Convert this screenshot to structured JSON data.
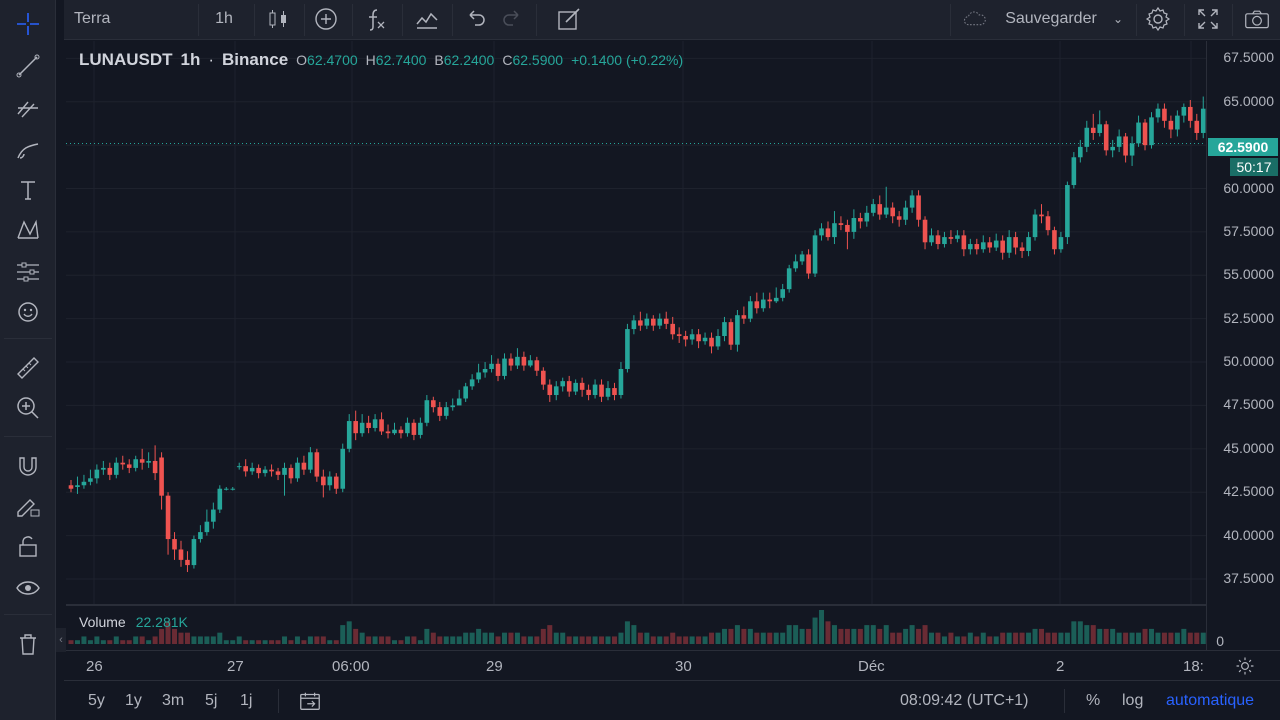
{
  "top_toolbar": {
    "symbol_search": "Terra",
    "interval": "1h",
    "save_label": "Sauvegarder",
    "icons": [
      "candles-icon",
      "indicators-add-icon",
      "fx-icon",
      "templates-icon",
      "undo-icon",
      "redo-icon",
      "edit-icon",
      "cloud-icon",
      "settings-icon",
      "fullscreen-icon",
      "camera-icon"
    ]
  },
  "legend": {
    "symbol": "LUNAUSDT",
    "interval": "1h",
    "exchange": "Binance",
    "open_label": "O",
    "open": "62.4700",
    "high_label": "H",
    "high": "62.7400",
    "low_label": "B",
    "low": "62.2400",
    "close_label": "C",
    "close": "62.5900",
    "change": "+0.1400 (+0.22%)"
  },
  "volume_legend": {
    "label": "Volume",
    "value": "22.281K",
    "zero_label": "0"
  },
  "price_scale": [
    "67.5000",
    "65.0000",
    "62.5000",
    "60.0000",
    "57.5000",
    "55.0000",
    "52.5000",
    "50.0000",
    "47.5000",
    "45.0000",
    "42.5000",
    "40.0000",
    "37.5000"
  ],
  "last_price": "62.5900",
  "countdown": "50:17",
  "time_scale": [
    "26",
    "27",
    "06:00",
    "29",
    "30",
    "Déc",
    "2",
    "18:"
  ],
  "bottom_bar": {
    "ranges": [
      "5y",
      "1y",
      "3m",
      "5j",
      "1j"
    ],
    "clock": "08:09:42 (UTC+1)",
    "percent": "%",
    "log": "log",
    "auto": "automatique"
  },
  "colors": {
    "up": "#26a69a",
    "down": "#ef5350",
    "background": "#131722",
    "grid": "#1e222d",
    "accent": "#2962ff"
  },
  "chart_data": {
    "type": "candlestick",
    "title": "",
    "ylim": [
      36.0,
      68.5
    ],
    "candles": [
      [
        42.9,
        42.7,
        43.2,
        42.5
      ],
      [
        42.8,
        42.9,
        43.4,
        42.4
      ],
      [
        42.9,
        43.1,
        43.5,
        42.7
      ],
      [
        43.1,
        43.3,
        43.8,
        42.9
      ],
      [
        43.3,
        43.8,
        44.1,
        43.0
      ],
      [
        43.8,
        43.9,
        44.3,
        43.5
      ],
      [
        43.9,
        43.5,
        44.2,
        43.2
      ],
      [
        43.5,
        44.2,
        44.5,
        43.3
      ],
      [
        44.2,
        44.1,
        44.6,
        43.8
      ],
      [
        44.1,
        43.9,
        44.4,
        43.6
      ],
      [
        43.9,
        44.4,
        44.6,
        43.7
      ],
      [
        44.4,
        44.2,
        45.0,
        43.8
      ],
      [
        44.2,
        44.3,
        44.8,
        43.9
      ],
      [
        44.3,
        43.6,
        45.2,
        43.2
      ],
      [
        44.5,
        42.3,
        44.8,
        41.5
      ],
      [
        42.3,
        39.8,
        42.5,
        38.9
      ],
      [
        39.8,
        39.2,
        40.2,
        38.6
      ],
      [
        39.2,
        38.6,
        39.7,
        38.2
      ],
      [
        38.6,
        38.3,
        39.1,
        37.9
      ],
      [
        38.3,
        39.8,
        40.0,
        38.1
      ],
      [
        39.8,
        40.2,
        40.6,
        39.6
      ],
      [
        40.2,
        40.8,
        41.5,
        40.0
      ],
      [
        40.8,
        41.5,
        41.9,
        40.4
      ],
      [
        41.5,
        42.7,
        42.9,
        41.3
      ],
      [
        42.7,
        42.7,
        42.8,
        42.6
      ],
      [
        42.7,
        42.7,
        42.8,
        42.6
      ],
      [
        44.0,
        44.0,
        44.2,
        43.8
      ],
      [
        44.0,
        43.7,
        44.4,
        43.4
      ],
      [
        43.7,
        43.9,
        44.2,
        43.5
      ],
      [
        43.9,
        43.6,
        44.1,
        43.3
      ],
      [
        43.6,
        43.8,
        44.0,
        43.4
      ],
      [
        43.8,
        43.7,
        44.1,
        43.4
      ],
      [
        43.7,
        43.5,
        43.9,
        43.2
      ],
      [
        43.5,
        43.9,
        44.2,
        42.3
      ],
      [
        43.9,
        43.3,
        44.1,
        43.0
      ],
      [
        43.3,
        44.2,
        44.5,
        43.1
      ],
      [
        44.2,
        43.8,
        44.6,
        43.5
      ],
      [
        43.8,
        44.8,
        45.1,
        43.6
      ],
      [
        44.8,
        43.4,
        45.0,
        43.1
      ],
      [
        43.4,
        42.9,
        43.8,
        42.2
      ],
      [
        42.9,
        43.4,
        43.7,
        42.6
      ],
      [
        43.4,
        42.7,
        43.6,
        42.4
      ],
      [
        42.7,
        45.0,
        45.3,
        42.5
      ],
      [
        45.0,
        46.6,
        47.0,
        44.8
      ],
      [
        46.6,
        45.9,
        47.2,
        45.5
      ],
      [
        45.9,
        46.5,
        47.0,
        45.7
      ],
      [
        46.5,
        46.2,
        46.9,
        45.9
      ],
      [
        46.2,
        46.7,
        47.0,
        46.0
      ],
      [
        46.7,
        46.0,
        47.1,
        45.8
      ],
      [
        46.0,
        45.9,
        46.4,
        45.6
      ],
      [
        45.9,
        46.1,
        46.5,
        45.8
      ],
      [
        46.1,
        45.9,
        46.3,
        45.6
      ],
      [
        45.9,
        46.5,
        46.8,
        45.7
      ],
      [
        46.5,
        45.8,
        46.7,
        45.5
      ],
      [
        45.8,
        46.5,
        46.8,
        45.6
      ],
      [
        46.5,
        47.8,
        48.1,
        46.3
      ],
      [
        47.8,
        47.4,
        48.0,
        47.1
      ],
      [
        47.4,
        46.9,
        47.7,
        46.6
      ],
      [
        46.9,
        47.4,
        47.7,
        46.7
      ],
      [
        47.4,
        47.5,
        47.9,
        47.2
      ],
      [
        47.5,
        47.9,
        48.4,
        47.6
      ],
      [
        47.9,
        48.6,
        48.8,
        47.7
      ],
      [
        48.6,
        49.0,
        49.3,
        48.4
      ],
      [
        49.0,
        49.4,
        49.9,
        48.8
      ],
      [
        49.4,
        49.6,
        50.0,
        49.1
      ],
      [
        49.6,
        49.9,
        50.4,
        49.4
      ],
      [
        49.9,
        49.2,
        50.2,
        48.9
      ],
      [
        49.2,
        50.2,
        50.5,
        49.0
      ],
      [
        50.2,
        49.8,
        50.5,
        49.5
      ],
      [
        49.8,
        50.3,
        50.8,
        49.6
      ],
      [
        50.3,
        49.8,
        50.6,
        49.5
      ],
      [
        49.8,
        50.1,
        50.4,
        49.7
      ],
      [
        50.1,
        49.5,
        50.3,
        49.2
      ],
      [
        49.5,
        48.7,
        49.7,
        48.4
      ],
      [
        48.7,
        48.1,
        49.0,
        47.7
      ],
      [
        48.1,
        48.6,
        48.9,
        47.8
      ],
      [
        48.6,
        48.9,
        49.1,
        48.3
      ],
      [
        48.9,
        48.3,
        49.2,
        48.0
      ],
      [
        48.3,
        48.8,
        49.0,
        48.1
      ],
      [
        48.8,
        48.4,
        49.1,
        48.0
      ],
      [
        48.4,
        48.1,
        48.7,
        47.8
      ],
      [
        48.1,
        48.7,
        49.0,
        47.9
      ],
      [
        48.7,
        48.0,
        49.0,
        47.7
      ],
      [
        48.0,
        48.5,
        48.9,
        47.8
      ],
      [
        48.5,
        48.1,
        48.8,
        47.8
      ],
      [
        48.1,
        49.6,
        50.0,
        47.9
      ],
      [
        49.6,
        51.9,
        52.2,
        49.4
      ],
      [
        51.9,
        52.4,
        52.7,
        51.6
      ],
      [
        52.4,
        52.1,
        52.9,
        51.8
      ],
      [
        52.1,
        52.5,
        52.8,
        51.9
      ],
      [
        52.5,
        52.1,
        52.7,
        51.8
      ],
      [
        52.1,
        52.5,
        52.8,
        51.9
      ],
      [
        52.5,
        52.2,
        52.9,
        51.9
      ],
      [
        52.2,
        51.6,
        52.6,
        51.3
      ],
      [
        51.6,
        51.5,
        52.0,
        51.1
      ],
      [
        51.5,
        51.3,
        51.8,
        50.9
      ],
      [
        51.3,
        51.6,
        51.9,
        51.0
      ],
      [
        51.6,
        51.2,
        51.9,
        50.8
      ],
      [
        51.2,
        51.4,
        51.7,
        51.0
      ],
      [
        51.4,
        50.9,
        51.7,
        50.5
      ],
      [
        50.9,
        51.5,
        51.9,
        50.7
      ],
      [
        51.5,
        52.3,
        52.6,
        51.2
      ],
      [
        52.3,
        51.0,
        52.5,
        50.7
      ],
      [
        51.0,
        52.7,
        53.0,
        50.6
      ],
      [
        52.7,
        52.5,
        53.2,
        52.2
      ],
      [
        52.5,
        53.5,
        53.8,
        52.3
      ],
      [
        53.5,
        53.1,
        54.0,
        52.8
      ],
      [
        53.1,
        53.6,
        54.0,
        52.9
      ],
      [
        53.6,
        53.5,
        54.0,
        53.1
      ],
      [
        53.5,
        53.7,
        54.3,
        53.4
      ],
      [
        53.7,
        54.2,
        54.5,
        53.5
      ],
      [
        54.2,
        55.4,
        55.6,
        54.0
      ],
      [
        55.4,
        55.8,
        56.2,
        55.2
      ],
      [
        55.8,
        56.2,
        56.4,
        55.6
      ],
      [
        56.2,
        55.1,
        56.5,
        54.8
      ],
      [
        55.1,
        57.3,
        57.6,
        54.9
      ],
      [
        57.3,
        57.7,
        58.0,
        57.0
      ],
      [
        57.7,
        57.2,
        58.1,
        57.0
      ],
      [
        57.2,
        58.0,
        58.7,
        56.8
      ],
      [
        58.0,
        57.9,
        58.4,
        57.6
      ],
      [
        57.9,
        57.5,
        58.2,
        56.5
      ],
      [
        57.5,
        58.3,
        58.8,
        57.1
      ],
      [
        58.3,
        58.1,
        58.6,
        57.7
      ],
      [
        58.1,
        58.6,
        59.0,
        57.8
      ],
      [
        58.6,
        59.1,
        59.4,
        58.4
      ],
      [
        59.1,
        58.5,
        59.6,
        58.2
      ],
      [
        58.5,
        58.9,
        60.1,
        58.3
      ],
      [
        58.9,
        58.4,
        59.2,
        58.0
      ],
      [
        58.4,
        58.2,
        58.7,
        57.8
      ],
      [
        58.2,
        58.9,
        59.3,
        57.9
      ],
      [
        58.9,
        59.6,
        59.9,
        58.6
      ],
      [
        59.6,
        58.2,
        59.9,
        57.8
      ],
      [
        58.2,
        56.9,
        58.4,
        56.5
      ],
      [
        56.9,
        57.3,
        57.7,
        56.7
      ],
      [
        57.3,
        56.8,
        57.6,
        56.5
      ],
      [
        56.8,
        57.2,
        57.5,
        56.6
      ],
      [
        57.2,
        57.1,
        57.6,
        56.8
      ],
      [
        57.1,
        57.3,
        57.6,
        56.9
      ],
      [
        57.3,
        56.5,
        57.6,
        56.1
      ],
      [
        56.5,
        56.8,
        57.1,
        56.2
      ],
      [
        56.8,
        56.5,
        57.1,
        56.2
      ],
      [
        56.5,
        56.9,
        57.3,
        56.3
      ],
      [
        56.9,
        56.6,
        57.2,
        56.3
      ],
      [
        56.6,
        57.0,
        57.4,
        56.4
      ],
      [
        57.0,
        56.3,
        57.3,
        55.9
      ],
      [
        56.3,
        57.2,
        57.6,
        56.0
      ],
      [
        57.2,
        56.6,
        57.5,
        56.2
      ],
      [
        56.6,
        56.4,
        56.9,
        56.0
      ],
      [
        56.4,
        57.2,
        57.5,
        56.1
      ],
      [
        57.2,
        58.5,
        58.8,
        57.0
      ],
      [
        58.5,
        58.4,
        59.1,
        58.0
      ],
      [
        58.4,
        57.6,
        58.7,
        57.3
      ],
      [
        57.6,
        56.5,
        57.8,
        56.2
      ],
      [
        56.5,
        57.2,
        57.5,
        56.3
      ],
      [
        57.2,
        60.2,
        60.4,
        56.8
      ],
      [
        60.2,
        61.8,
        62.1,
        60.0
      ],
      [
        61.8,
        62.4,
        62.8,
        61.5
      ],
      [
        62.4,
        63.5,
        63.9,
        62.1
      ],
      [
        63.5,
        63.2,
        64.3,
        62.8
      ],
      [
        63.2,
        63.7,
        64.5,
        63.0
      ],
      [
        63.7,
        62.2,
        63.9,
        61.9
      ],
      [
        62.2,
        62.4,
        62.8,
        61.8
      ],
      [
        62.4,
        63.0,
        63.4,
        62.1
      ],
      [
        63.0,
        61.9,
        63.2,
        61.5
      ],
      [
        61.9,
        62.6,
        63.0,
        61.3
      ],
      [
        62.6,
        63.8,
        64.2,
        62.4
      ],
      [
        63.8,
        62.5,
        64.0,
        62.2
      ],
      [
        62.5,
        64.1,
        64.4,
        62.3
      ],
      [
        64.1,
        64.6,
        64.9,
        63.8
      ],
      [
        64.6,
        63.9,
        64.9,
        63.5
      ],
      [
        63.9,
        63.4,
        64.2,
        62.9
      ],
      [
        63.4,
        64.2,
        64.5,
        63.0
      ],
      [
        64.2,
        64.7,
        64.9,
        63.8
      ],
      [
        64.7,
        63.9,
        65.1,
        63.5
      ],
      [
        63.9,
        63.2,
        64.3,
        62.8
      ],
      [
        63.2,
        64.6,
        65.3,
        62.9
      ],
      [
        64.6,
        64.4,
        64.8,
        64.0
      ],
      [
        64.4,
        63.9,
        64.7,
        61.0
      ],
      [
        63.9,
        63.6,
        64.3,
        63.2
      ],
      [
        63.6,
        64.2,
        65.7,
        63.3
      ],
      [
        64.2,
        63.5,
        64.5,
        63.2
      ],
      [
        63.5,
        63.2,
        64.3,
        62.9
      ],
      [
        63.2,
        62.4,
        63.5,
        62.1
      ],
      [
        62.4,
        62.5,
        62.8,
        61.7
      ],
      [
        62.47,
        62.59,
        62.74,
        62.24
      ]
    ],
    "volume": [
      1,
      1,
      2,
      1,
      2,
      1,
      1,
      2,
      1,
      1,
      2,
      2,
      1,
      2,
      4,
      6,
      4,
      3,
      3,
      2,
      2,
      2,
      2,
      3,
      1,
      1,
      2,
      1,
      1,
      1,
      1,
      1,
      1,
      2,
      1,
      2,
      1,
      2,
      2,
      2,
      1,
      1,
      5,
      6,
      4,
      3,
      2,
      2,
      2,
      2,
      1,
      1,
      2,
      2,
      1,
      4,
      3,
      2,
      2,
      2,
      2,
      3,
      3,
      4,
      3,
      3,
      2,
      3,
      3,
      3,
      2,
      2,
      2,
      4,
      5,
      3,
      3,
      2,
      2,
      2,
      2,
      2,
      2,
      2,
      2,
      3,
      6,
      5,
      3,
      3,
      2,
      2,
      2,
      3,
      2,
      2,
      2,
      2,
      2,
      3,
      3,
      4,
      4,
      5,
      4,
      4,
      3,
      3,
      3,
      3,
      3,
      5,
      5,
      4,
      4,
      7,
      9,
      6,
      5,
      4,
      4,
      4,
      4,
      5,
      5,
      4,
      5,
      3,
      3,
      4,
      5,
      4,
      5,
      3,
      3,
      2,
      3,
      2,
      2,
      3,
      2,
      3,
      2,
      2,
      3,
      3,
      3,
      3,
      3,
      4,
      4,
      3,
      3,
      3,
      3,
      6,
      6,
      5,
      5,
      4,
      4,
      4,
      3,
      3,
      3,
      3,
      4,
      4,
      3,
      3,
      3,
      3,
      4,
      3,
      3,
      3,
      4,
      3,
      3,
      3,
      3,
      2,
      2,
      2,
      1
    ]
  }
}
